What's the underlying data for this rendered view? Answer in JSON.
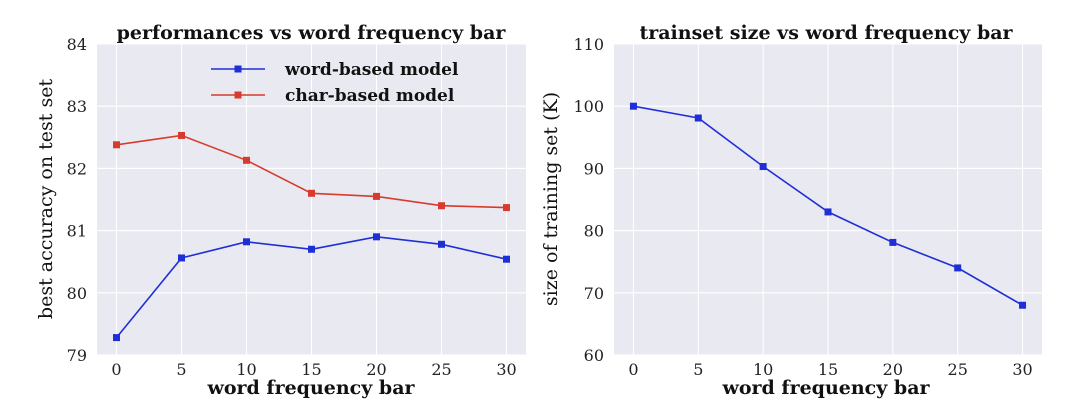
{
  "chart_data": [
    {
      "type": "line",
      "title": "performances vs word frequency bar",
      "xlabel": "word frequency bar",
      "ylabel": "best accuracy on test set",
      "x": [
        0,
        5,
        10,
        15,
        20,
        25,
        30
      ],
      "xticks": [
        "0",
        "5",
        "10",
        "15",
        "20",
        "25",
        "30"
      ],
      "yticks": [
        "79",
        "80",
        "81",
        "82",
        "83",
        "84"
      ],
      "xlim": [
        -1.5,
        31.5
      ],
      "ylim": [
        79,
        84
      ],
      "grid": true,
      "legend_position": "top-right",
      "series": [
        {
          "name": "word-based model",
          "color": "#1f2fd6",
          "values": [
            79.28,
            80.56,
            80.82,
            80.7,
            80.9,
            80.78,
            80.54
          ]
        },
        {
          "name": "char-based model",
          "color": "#d83a2e",
          "values": [
            82.38,
            82.53,
            82.13,
            81.6,
            81.55,
            81.4,
            81.37
          ]
        }
      ]
    },
    {
      "type": "line",
      "title": "trainset size vs word frequency bar",
      "xlabel": "word frequency bar",
      "ylabel": "size of training set (K)",
      "x": [
        0,
        5,
        10,
        15,
        20,
        25,
        30
      ],
      "xticks": [
        "0",
        "5",
        "10",
        "15",
        "20",
        "25",
        "30"
      ],
      "yticks": [
        "60",
        "70",
        "80",
        "90",
        "100",
        "110"
      ],
      "xlim": [
        -1.5,
        31.5
      ],
      "ylim": [
        60,
        110
      ],
      "grid": true,
      "series": [
        {
          "name": "trainset size",
          "color": "#1f2fd6",
          "values": [
            100.0,
            98.1,
            90.3,
            83.0,
            78.1,
            74.0,
            68.0
          ]
        }
      ]
    }
  ]
}
